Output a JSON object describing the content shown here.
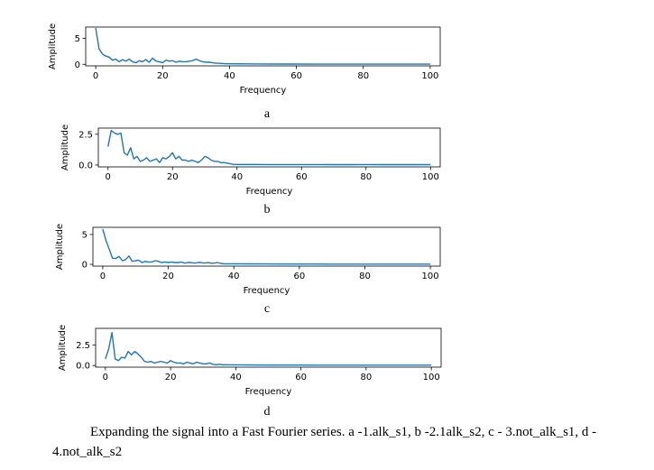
{
  "caption": "Expanding the signal into a Fast Fourier series. a -1.alk_s1, b -2.1alk_s2, c - 3.not_alk_s1, d - 4.not_alk_s2",
  "chart_data": [
    {
      "type": "line",
      "panel": "a",
      "xlabel": "Frequency",
      "ylabel": "Amplitude",
      "xlim": [
        -3,
        103
      ],
      "ylim": [
        -0.3,
        7.2
      ],
      "xticks": [
        0,
        20,
        40,
        60,
        80,
        100
      ],
      "yticks": [
        0,
        5
      ],
      "series_color": "#1f77b4",
      "x": [
        0,
        1,
        2,
        3,
        4,
        5,
        6,
        7,
        8,
        9,
        10,
        11,
        12,
        13,
        14,
        15,
        16,
        17,
        18,
        19,
        20,
        21,
        22,
        23,
        24,
        25,
        26,
        27,
        28,
        29,
        30,
        31,
        32,
        33,
        34,
        35,
        36,
        37,
        38,
        39,
        40,
        45,
        50,
        55,
        60,
        65,
        70,
        75,
        80,
        85,
        90,
        95,
        100
      ],
      "y": [
        7.0,
        3.0,
        2.0,
        1.6,
        1.4,
        0.8,
        1.0,
        0.5,
        0.9,
        0.6,
        1.0,
        0.5,
        0.3,
        0.7,
        0.5,
        0.9,
        0.4,
        1.2,
        0.6,
        0.5,
        0.3,
        0.8,
        0.6,
        0.7,
        0.4,
        0.6,
        0.5,
        0.5,
        0.6,
        0.7,
        1.0,
        0.7,
        0.5,
        0.4,
        0.4,
        0.3,
        0.2,
        0.2,
        0.15,
        0.1,
        0.1,
        0.08,
        0.06,
        0.05,
        0.05,
        0.04,
        0.04,
        0.03,
        0.03,
        0.03,
        0.03,
        0.03,
        0.03
      ]
    },
    {
      "type": "line",
      "panel": "b",
      "xlabel": "Frequency",
      "ylabel": "Amplitude",
      "xlim": [
        -3,
        103
      ],
      "ylim": [
        -0.15,
        3.0
      ],
      "xticks": [
        0,
        20,
        40,
        60,
        80,
        100
      ],
      "yticks": [
        0.0,
        2.5
      ],
      "ytick_labels": [
        "0.0",
        "2.5"
      ],
      "series_color": "#1f77b4",
      "x": [
        0,
        1,
        2,
        3,
        4,
        5,
        6,
        7,
        8,
        9,
        10,
        11,
        12,
        13,
        14,
        15,
        16,
        17,
        18,
        19,
        20,
        21,
        22,
        23,
        24,
        25,
        26,
        27,
        28,
        29,
        30,
        31,
        32,
        33,
        34,
        35,
        36,
        37,
        38,
        39,
        40,
        45,
        50,
        55,
        60,
        65,
        70,
        75,
        80,
        85,
        90,
        95,
        100
      ],
      "y": [
        1.5,
        2.8,
        2.6,
        2.5,
        2.6,
        1.0,
        0.8,
        1.4,
        0.5,
        0.7,
        0.3,
        0.4,
        0.6,
        0.3,
        0.4,
        0.5,
        0.2,
        0.6,
        0.5,
        0.7,
        1.0,
        0.5,
        0.7,
        0.4,
        0.4,
        0.3,
        0.4,
        0.3,
        0.2,
        0.4,
        0.7,
        0.6,
        0.4,
        0.3,
        0.3,
        0.2,
        0.2,
        0.15,
        0.1,
        0.05,
        0.05,
        0.05,
        0.04,
        0.04,
        0.04,
        0.04,
        0.03,
        0.03,
        0.04,
        0.03,
        0.03,
        0.03,
        0.03
      ]
    },
    {
      "type": "line",
      "panel": "c",
      "xlabel": "Frequency",
      "ylabel": "Amplitude",
      "xlim": [
        -3,
        103
      ],
      "ylim": [
        -0.3,
        6.2
      ],
      "xticks": [
        0,
        20,
        40,
        60,
        80,
        100
      ],
      "yticks": [
        0,
        5
      ],
      "series_color": "#1f77b4",
      "x": [
        0,
        1,
        2,
        3,
        4,
        5,
        6,
        7,
        8,
        9,
        10,
        11,
        12,
        13,
        14,
        15,
        16,
        17,
        18,
        19,
        20,
        21,
        22,
        23,
        24,
        25,
        26,
        27,
        28,
        29,
        30,
        31,
        32,
        33,
        34,
        35,
        36,
        37,
        38,
        39,
        40,
        45,
        50,
        55,
        60,
        65,
        70,
        75,
        80,
        85,
        90,
        95,
        100
      ],
      "y": [
        5.9,
        4.0,
        2.5,
        1.0,
        1.0,
        1.3,
        0.6,
        0.8,
        1.4,
        0.5,
        0.6,
        0.7,
        0.3,
        0.5,
        0.4,
        0.4,
        0.6,
        0.5,
        0.3,
        0.4,
        0.3,
        0.4,
        0.3,
        0.3,
        0.4,
        0.2,
        0.3,
        0.3,
        0.2,
        0.3,
        0.3,
        0.2,
        0.3,
        0.2,
        0.2,
        0.3,
        0.15,
        0.1,
        0.1,
        0.1,
        0.1,
        0.08,
        0.06,
        0.05,
        0.05,
        0.05,
        0.04,
        0.04,
        0.04,
        0.04,
        0.04,
        0.04,
        0.04
      ]
    },
    {
      "type": "line",
      "panel": "d",
      "xlabel": "Frequency",
      "ylabel": "Amplitude",
      "xlim": [
        -3,
        103
      ],
      "ylim": [
        -0.2,
        4.5
      ],
      "xticks": [
        0,
        20,
        40,
        60,
        80,
        100
      ],
      "yticks": [
        0.0,
        2.5
      ],
      "ytick_labels": [
        "0.0",
        "2.5"
      ],
      "series_color": "#1f77b4",
      "x": [
        0,
        1,
        2,
        3,
        4,
        5,
        6,
        7,
        8,
        9,
        10,
        11,
        12,
        13,
        14,
        15,
        16,
        17,
        18,
        19,
        20,
        21,
        22,
        23,
        24,
        25,
        26,
        27,
        28,
        29,
        30,
        31,
        32,
        33,
        34,
        35,
        36,
        37,
        38,
        39,
        40,
        45,
        50,
        55,
        60,
        65,
        70,
        75,
        80,
        85,
        90,
        95,
        100
      ],
      "y": [
        0.8,
        2.0,
        4.0,
        0.8,
        0.6,
        1.0,
        0.9,
        1.7,
        1.3,
        1.7,
        1.4,
        1.0,
        0.5,
        0.4,
        0.5,
        0.3,
        0.4,
        0.5,
        0.4,
        0.3,
        0.6,
        0.4,
        0.3,
        0.3,
        0.2,
        0.4,
        0.3,
        0.2,
        0.4,
        0.3,
        0.2,
        0.2,
        0.3,
        0.15,
        0.1,
        0.15,
        0.1,
        0.1,
        0.08,
        0.08,
        0.08,
        0.06,
        0.05,
        0.05,
        0.05,
        0.04,
        0.04,
        0.04,
        0.04,
        0.04,
        0.04,
        0.04,
        0.04
      ]
    }
  ]
}
